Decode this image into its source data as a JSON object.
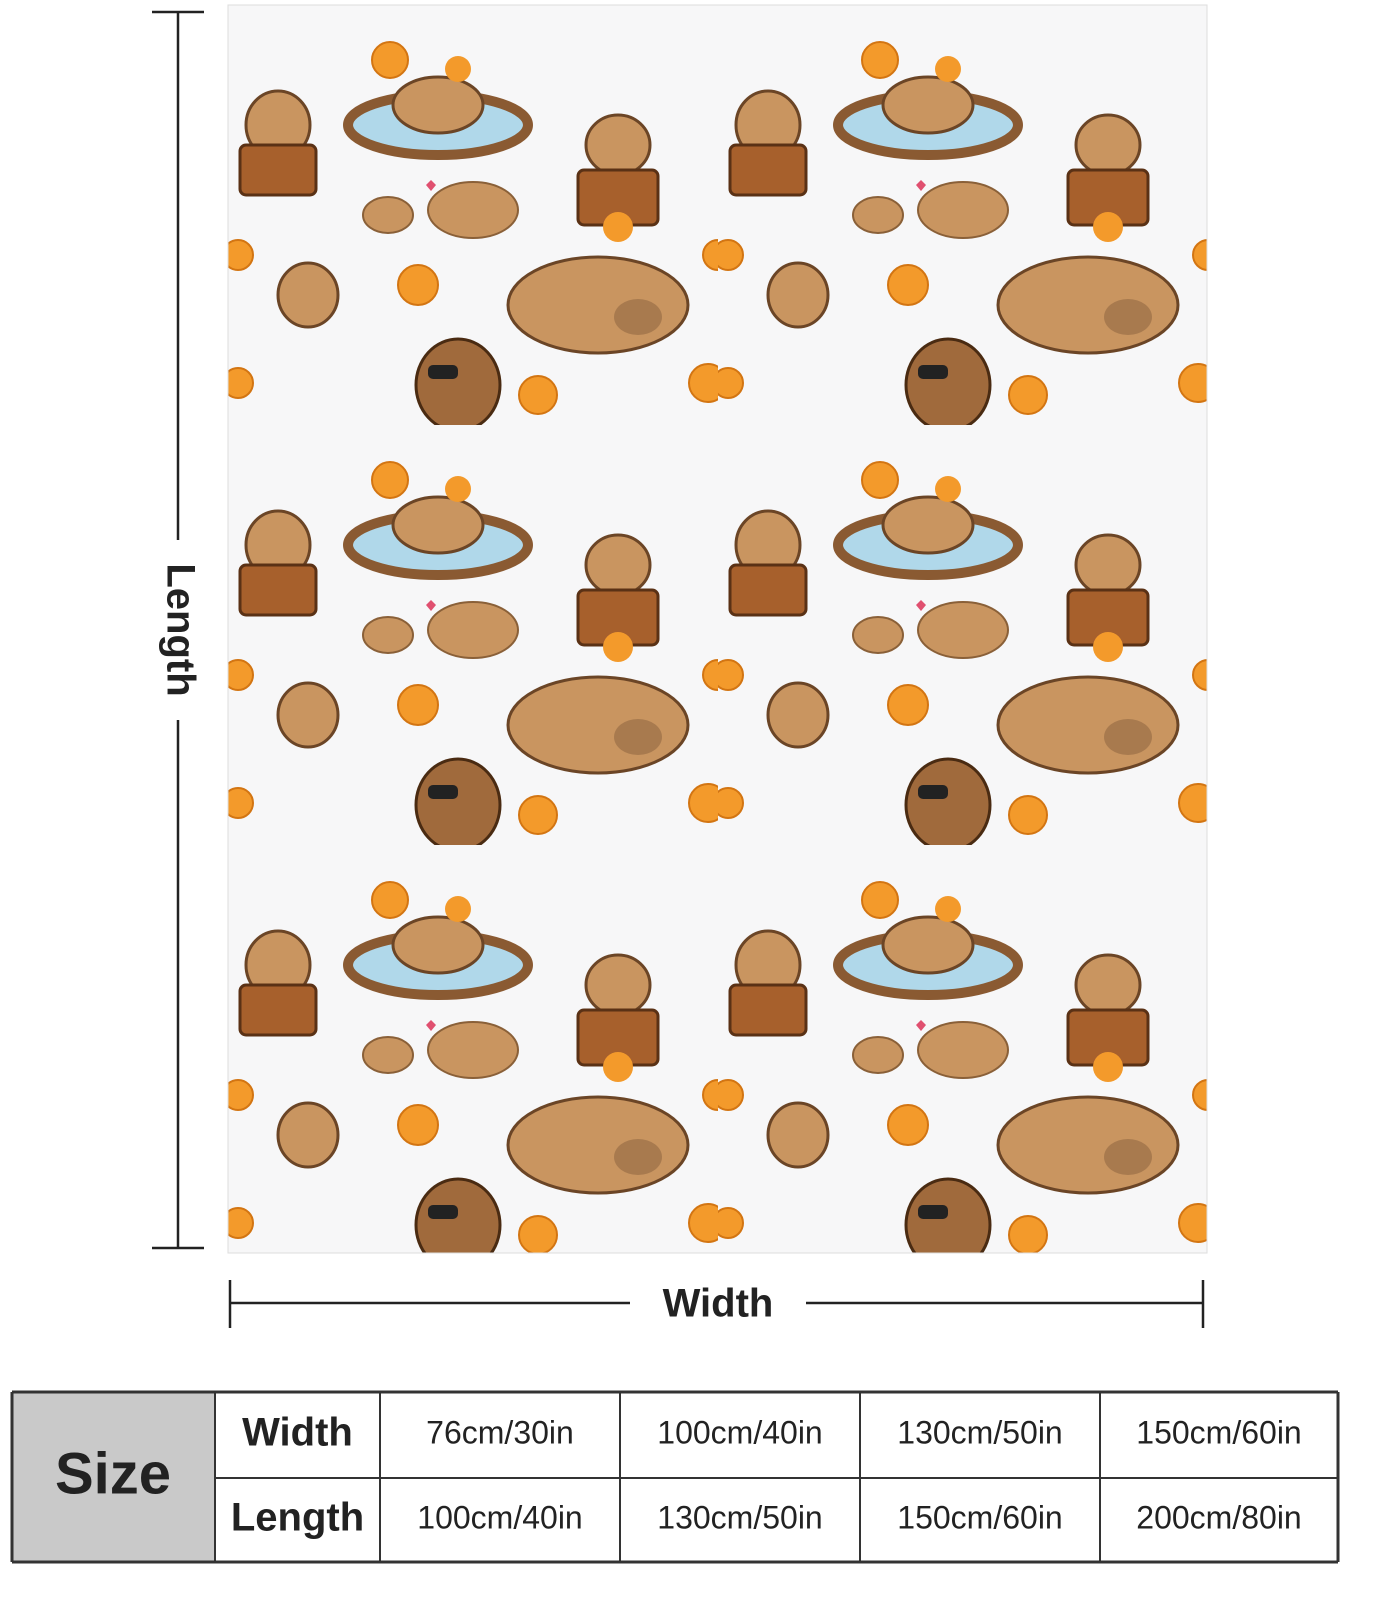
{
  "dimensions": {
    "length_label": "Length",
    "width_label": "Width"
  },
  "size_table": {
    "header": "Size",
    "rows": [
      {
        "label": "Width",
        "cells": [
          "76cm/30in",
          "100cm/40in",
          "130cm/50in",
          "150cm/60in"
        ]
      },
      {
        "label": "Length",
        "cells": [
          "100cm/40in",
          "130cm/50in",
          "150cm/60in",
          "200cm/80in"
        ]
      }
    ]
  }
}
